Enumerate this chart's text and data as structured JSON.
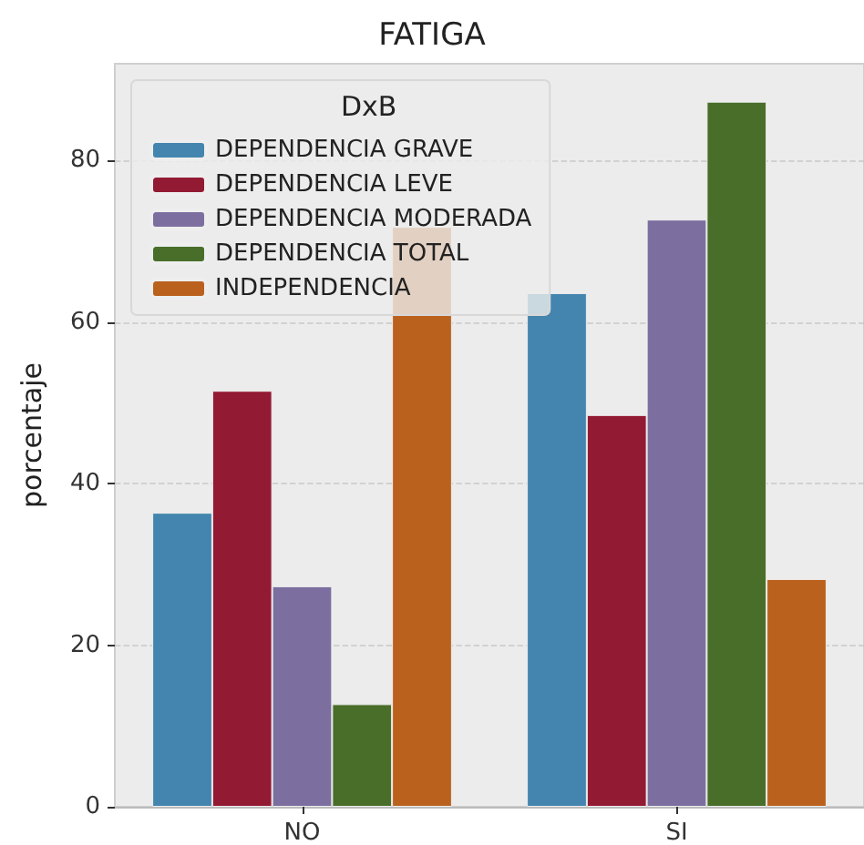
{
  "chart_data": {
    "type": "bar",
    "title": "FATIGA",
    "ylabel": "porcentaje",
    "legend_title": "DxB",
    "categories": [
      "NO",
      "SI"
    ],
    "series": [
      {
        "name": "DEPENDENCIA GRAVE",
        "color": "#4385ae",
        "values": [
          36.4,
          63.6
        ]
      },
      {
        "name": "DEPENDENCIA LEVE",
        "color": "#931a33",
        "values": [
          51.5,
          48.5
        ]
      },
      {
        "name": "DEPENDENCIA MODERADA",
        "color": "#7c6fa0",
        "values": [
          27.3,
          72.7
        ]
      },
      {
        "name": "DEPENDENCIA TOTAL",
        "color": "#486e2a",
        "values": [
          12.7,
          87.3
        ]
      },
      {
        "name": "INDEPENDENCIA",
        "color": "#ba611e",
        "values": [
          71.8,
          28.2
        ]
      }
    ],
    "ylim": [
      0,
      92
    ],
    "yticks": [
      0,
      20,
      40,
      60,
      80
    ],
    "grid": "y",
    "legend": "top left"
  }
}
